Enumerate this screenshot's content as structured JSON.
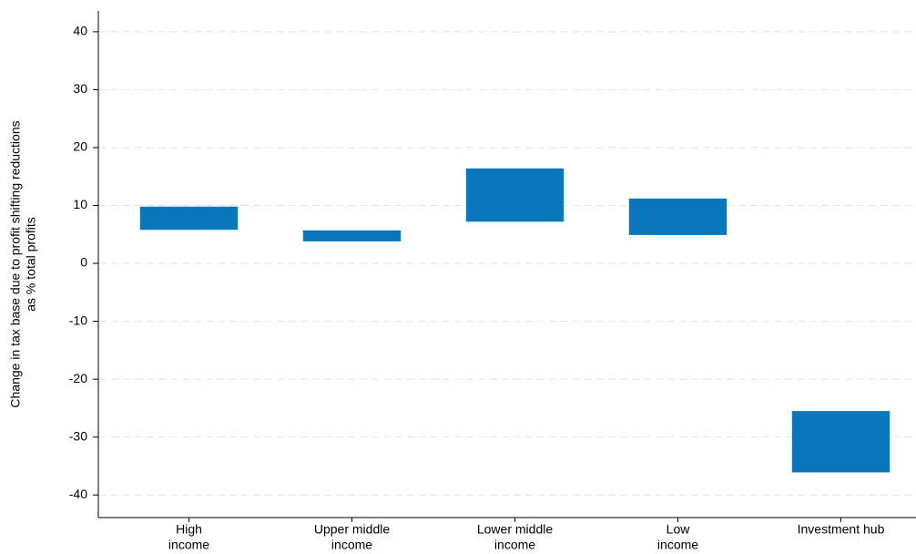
{
  "chart_data": {
    "type": "range-bar",
    "ylabel": [
      "Change in tax base due to profit shifting reductions",
      "as % total profits"
    ],
    "categories": [
      [
        "High",
        "income"
      ],
      [
        "Upper middle",
        "income"
      ],
      [
        "Lower middle",
        "income"
      ],
      [
        "Low",
        "income"
      ],
      [
        "Investment hub"
      ]
    ],
    "low": [
      5.8,
      3.8,
      7.2,
      4.9,
      -36.1
    ],
    "high": [
      9.8,
      5.7,
      16.4,
      11.2,
      -25.5
    ],
    "color": "#0a77bd",
    "ylim": [
      -43.9,
      43.6
    ],
    "yticks": [
      -40,
      -30,
      -20,
      -10,
      0,
      10,
      20,
      30,
      40
    ],
    "grid": true
  }
}
